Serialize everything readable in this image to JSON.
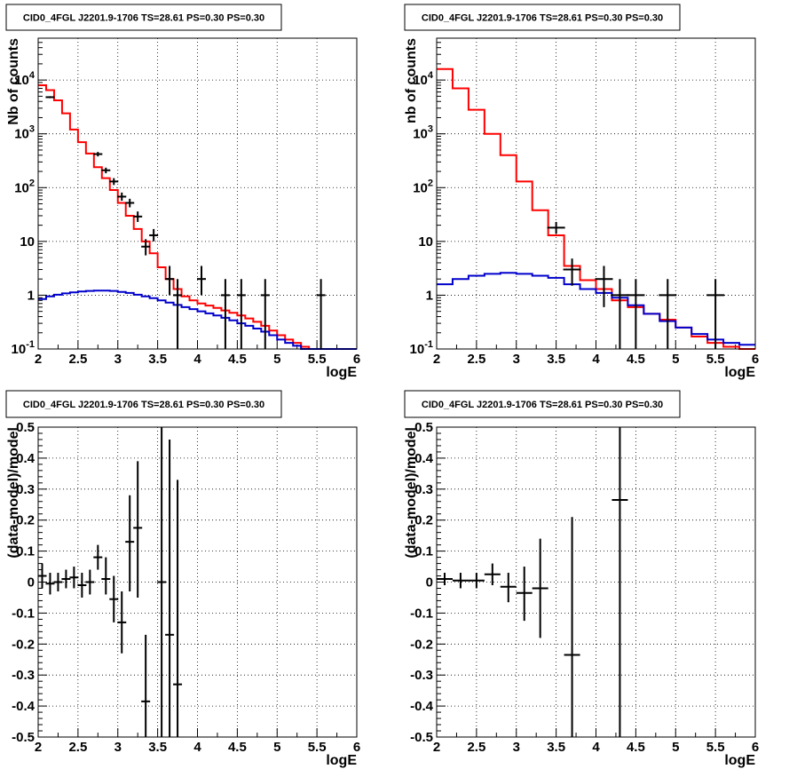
{
  "chart_data": [
    {
      "type": "step",
      "title": "CID0_4FGL J2201.9-1706 TS=28.61 PS=0.30 PS=0.30",
      "xlabel": "logE",
      "ylabel": "Nb of counts",
      "yscale": "log",
      "xlim": [
        2,
        6
      ],
      "ylim": [
        0.1,
        60000
      ],
      "xticks": [
        "2",
        "2.5",
        "3",
        "3.5",
        "4",
        "4.5",
        "5",
        "5.5",
        "6"
      ],
      "yticks": [
        "10^-1",
        "1",
        "10",
        "10^2",
        "10^3",
        "10^4"
      ],
      "grid": true,
      "bin_edges": [
        2.0,
        2.1,
        2.2,
        2.3,
        2.4,
        2.5,
        2.6,
        2.7,
        2.8,
        2.9,
        3.0,
        3.1,
        3.2,
        3.3,
        3.4,
        3.5,
        3.6,
        3.7,
        3.8,
        3.9,
        4.0,
        4.1,
        4.2,
        4.3,
        4.4,
        4.5,
        4.6,
        4.7,
        4.8,
        4.9,
        5.0,
        5.1,
        5.2,
        5.3,
        5.4,
        5.5,
        5.6,
        5.7,
        5.8,
        5.9,
        6.0
      ],
      "series": [
        {
          "values": [
            8000,
            6500,
            4200,
            2400,
            1200,
            700,
            430,
            240,
            150,
            90,
            52,
            30,
            17,
            10,
            6,
            3.3,
            2.0,
            1.3,
            0.95,
            0.8,
            0.7,
            0.64,
            0.58,
            0.52,
            0.47,
            0.42,
            0.37,
            0.32,
            0.27,
            0.22,
            0.18,
            0.15,
            0.13,
            0.11,
            0.1,
            0.1,
            0.1,
            0.1,
            0.1,
            0.1
          ],
          "color": "#ff0000"
        },
        {
          "values": [
            0.85,
            0.95,
            1.02,
            1.08,
            1.13,
            1.17,
            1.2,
            1.22,
            1.22,
            1.2,
            1.15,
            1.1,
            1.02,
            0.95,
            0.88,
            0.8,
            0.73,
            0.66,
            0.6,
            0.55,
            0.5,
            0.46,
            0.42,
            0.38,
            0.34,
            0.3,
            0.27,
            0.24,
            0.21,
            0.18,
            0.15,
            0.13,
            0.115,
            0.1,
            0.1,
            0.1,
            0.1,
            0.1,
            0.1,
            0.1
          ],
          "color": "#0000cc"
        }
      ],
      "points": [
        {
          "x": 2.15,
          "y": 4800,
          "ylo": 4600,
          "yhi": 5000
        },
        {
          "x": 2.75,
          "y": 420,
          "ylo": 380,
          "yhi": 460
        },
        {
          "x": 2.85,
          "y": 210,
          "ylo": 185,
          "yhi": 235
        },
        {
          "x": 2.95,
          "y": 130,
          "ylo": 112,
          "yhi": 150
        },
        {
          "x": 3.05,
          "y": 68,
          "ylo": 57,
          "yhi": 81
        },
        {
          "x": 3.15,
          "y": 52,
          "ylo": 43,
          "yhi": 62
        },
        {
          "x": 3.25,
          "y": 29,
          "ylo": 23,
          "yhi": 36
        },
        {
          "x": 3.35,
          "y": 8,
          "ylo": 5.5,
          "yhi": 11
        },
        {
          "x": 3.45,
          "y": 13,
          "ylo": 10,
          "yhi": 17
        },
        {
          "x": 3.65,
          "y": 2,
          "ylo": 1,
          "yhi": 3.5
        },
        {
          "x": 3.75,
          "y": 1,
          "ylo": 0.1,
          "yhi": 2
        },
        {
          "x": 4.05,
          "y": 2,
          "ylo": 1,
          "yhi": 3.5
        },
        {
          "x": 4.35,
          "y": 1,
          "ylo": 0.1,
          "yhi": 2
        },
        {
          "x": 4.55,
          "y": 1,
          "ylo": 0.1,
          "yhi": 2
        },
        {
          "x": 4.85,
          "y": 1,
          "ylo": 0.1,
          "yhi": 2
        },
        {
          "x": 5.55,
          "y": 1,
          "ylo": 0.1,
          "yhi": 2
        }
      ]
    },
    {
      "type": "step",
      "title": "CID0_4FGL J2201.9-1706 TS=28.61 PS=0.30 PS=0.30",
      "xlabel": "logE",
      "ylabel": "nb of counts",
      "yscale": "log",
      "xlim": [
        2,
        6
      ],
      "ylim": [
        0.1,
        60000
      ],
      "xticks": [
        "2",
        "2.5",
        "3",
        "3.5",
        "4",
        "4.5",
        "5",
        "5.5",
        "6"
      ],
      "yticks": [
        "10^-1",
        "1",
        "10",
        "10^2",
        "10^3",
        "10^4"
      ],
      "grid": true,
      "bin_edges": [
        2.0,
        2.2,
        2.4,
        2.6,
        2.8,
        3.0,
        3.2,
        3.4,
        3.6,
        3.8,
        4.0,
        4.2,
        4.4,
        4.6,
        4.8,
        5.0,
        5.2,
        5.4,
        5.6,
        5.8,
        6.0
      ],
      "series": [
        {
          "values": [
            16000,
            7000,
            2800,
            1000,
            400,
            130,
            38,
            13,
            3.5,
            1.9,
            1.3,
            0.8,
            0.6,
            0.45,
            0.35,
            0.25,
            0.17,
            0.13,
            0.11,
            0.1
          ],
          "color": "#ff0000"
        },
        {
          "values": [
            1.6,
            2.0,
            2.3,
            2.5,
            2.6,
            2.5,
            2.3,
            2.1,
            1.6,
            1.3,
            1.1,
            0.9,
            0.65,
            0.45,
            0.33,
            0.25,
            0.19,
            0.15,
            0.13,
            0.12
          ],
          "color": "#0000cc"
        }
      ],
      "points": [
        {
          "x": 3.5,
          "y": 18,
          "ylo": 14,
          "yhi": 23
        },
        {
          "x": 3.7,
          "y": 3,
          "ylo": 1.5,
          "yhi": 4.8
        },
        {
          "x": 4.1,
          "y": 2,
          "ylo": 0.6,
          "yhi": 3.5
        },
        {
          "x": 4.3,
          "y": 1,
          "ylo": 0.1,
          "yhi": 2
        },
        {
          "x": 4.5,
          "y": 1,
          "ylo": 0.1,
          "yhi": 2
        },
        {
          "x": 4.9,
          "y": 1,
          "ylo": 0.1,
          "yhi": 2
        },
        {
          "x": 5.5,
          "y": 1,
          "ylo": 0.1,
          "yhi": 2
        }
      ]
    },
    {
      "type": "scatter",
      "title": "CID0_4FGL J2201.9-1706 TS=28.61 PS=0.30 PS=0.30",
      "xlabel": "logE",
      "ylabel": "(data-model)/model",
      "yscale": "linear",
      "xlim": [
        2,
        6
      ],
      "ylim": [
        -0.5,
        0.5
      ],
      "xticks": [
        "2",
        "2.5",
        "3",
        "3.5",
        "4",
        "4.5",
        "5",
        "5.5",
        "6"
      ],
      "yticks": [
        "-0.5",
        "-0.4",
        "-0.3",
        "-0.2",
        "-0.1",
        "0",
        "0.1",
        "0.2",
        "0.3",
        "0.4",
        "0.5"
      ],
      "grid": true,
      "points": [
        {
          "x": 2.05,
          "y": 0.02,
          "ylo": -0.02,
          "yhi": 0.06
        },
        {
          "x": 2.15,
          "y": -0.005,
          "ylo": -0.04,
          "yhi": 0.03
        },
        {
          "x": 2.25,
          "y": 0.0,
          "ylo": -0.03,
          "yhi": 0.03
        },
        {
          "x": 2.35,
          "y": 0.01,
          "ylo": -0.02,
          "yhi": 0.04
        },
        {
          "x": 2.45,
          "y": 0.015,
          "ylo": -0.02,
          "yhi": 0.05
        },
        {
          "x": 2.55,
          "y": -0.01,
          "ylo": -0.05,
          "yhi": 0.03
        },
        {
          "x": 2.65,
          "y": 0.0,
          "ylo": -0.04,
          "yhi": 0.04
        },
        {
          "x": 2.75,
          "y": 0.08,
          "ylo": 0.04,
          "yhi": 0.12
        },
        {
          "x": 2.85,
          "y": 0.01,
          "ylo": -0.04,
          "yhi": 0.08
        },
        {
          "x": 2.95,
          "y": -0.055,
          "ylo": -0.13,
          "yhi": 0.02
        },
        {
          "x": 3.05,
          "y": -0.13,
          "ylo": -0.23,
          "yhi": -0.03
        },
        {
          "x": 3.15,
          "y": 0.13,
          "ylo": -0.03,
          "yhi": 0.28
        },
        {
          "x": 3.25,
          "y": 0.175,
          "ylo": -0.05,
          "yhi": 0.39
        },
        {
          "x": 3.35,
          "y": -0.385,
          "ylo": -0.5,
          "yhi": -0.17
        },
        {
          "x": 3.55,
          "y": 0.0,
          "ylo": -0.5,
          "yhi": 0.5
        },
        {
          "x": 3.65,
          "y": -0.17,
          "ylo": -0.5,
          "yhi": 0.46
        },
        {
          "x": 3.75,
          "y": -0.33,
          "ylo": -0.5,
          "yhi": 0.33
        }
      ]
    },
    {
      "type": "scatter",
      "title": "CID0_4FGL J2201.9-1706 TS=28.61 PS=0.30 PS=0.30",
      "xlabel": "logE",
      "ylabel": "(data-model)/model",
      "yscale": "linear",
      "xlim": [
        2,
        6
      ],
      "ylim": [
        -0.5,
        0.5
      ],
      "xticks": [
        "2",
        "2.5",
        "3",
        "3.5",
        "4",
        "4.5",
        "5",
        "5.5",
        "6"
      ],
      "yticks": [
        "-0.5",
        "-0.4",
        "-0.3",
        "-0.2",
        "-0.1",
        "0",
        "0.1",
        "0.2",
        "0.3",
        "0.4",
        "0.5"
      ],
      "grid": true,
      "points": [
        {
          "x": 2.1,
          "y": 0.01,
          "ylo": -0.01,
          "yhi": 0.03
        },
        {
          "x": 2.3,
          "y": 0.005,
          "ylo": -0.02,
          "yhi": 0.03
        },
        {
          "x": 2.5,
          "y": 0.005,
          "ylo": -0.02,
          "yhi": 0.03
        },
        {
          "x": 2.7,
          "y": 0.025,
          "ylo": -0.01,
          "yhi": 0.06
        },
        {
          "x": 2.9,
          "y": -0.015,
          "ylo": -0.065,
          "yhi": 0.03
        },
        {
          "x": 3.1,
          "y": -0.035,
          "ylo": -0.125,
          "yhi": 0.05
        },
        {
          "x": 3.3,
          "y": -0.02,
          "ylo": -0.18,
          "yhi": 0.14
        },
        {
          "x": 3.7,
          "y": -0.235,
          "ylo": -0.5,
          "yhi": 0.21
        },
        {
          "x": 4.3,
          "y": 0.265,
          "ylo": -0.5,
          "yhi": 0.5
        }
      ]
    }
  ]
}
